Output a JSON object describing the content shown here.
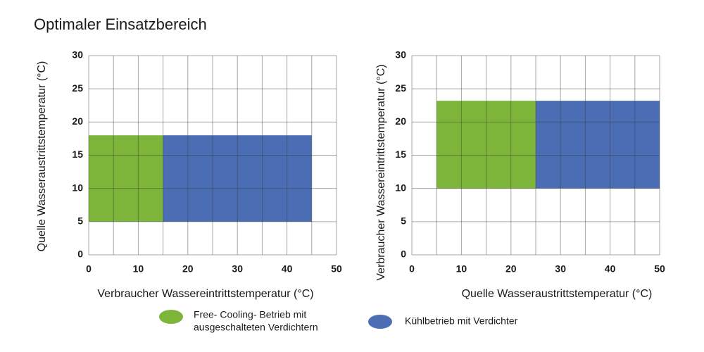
{
  "title": "Optimaler Einsatzbereich",
  "legend": [
    {
      "name": [
        "Free- Cooling- Betrieb mit",
        "ausgeschalteten Verdichtern"
      ],
      "color": "#7cb53a"
    },
    {
      "name": [
        "Kühlbetrieb mit Verdichter"
      ],
      "color": "#4a6db3"
    }
  ],
  "chart_data": [
    {
      "type": "region",
      "xlabel": "Verbraucher Wassereintrittstemperatur (°C)",
      "ylabel": "Quelle Wasseraustrittstemperatur (°C)",
      "regions": [
        {
          "x": [
            0,
            15
          ],
          "y": [
            5,
            18
          ]
        },
        {
          "x": [
            15,
            45
          ],
          "y": [
            5,
            18
          ]
        }
      ],
      "xlim": [
        0,
        50
      ],
      "xticks": [
        0,
        10,
        20,
        30,
        40,
        50
      ],
      "xminorticks": [
        5,
        15,
        25,
        35,
        45
      ],
      "ylim": [
        0,
        30
      ],
      "yticks": [
        0,
        5,
        10,
        15,
        20,
        25,
        30
      ],
      "grid": true
    },
    {
      "type": "region",
      "xlabel": "Quelle Wasseraustrittstemperatur (°C)",
      "ylabel": "Verbraucher Wassereintrittstemperatur (°C)",
      "regions": [
        {
          "x": [
            5,
            25
          ],
          "y": [
            10,
            23.2
          ]
        },
        {
          "x": [
            25,
            50
          ],
          "y": [
            10,
            23.2
          ]
        }
      ],
      "xlim": [
        0,
        50
      ],
      "xticks": [
        0,
        10,
        20,
        30,
        40,
        50
      ],
      "xminorticks": [
        5,
        15,
        25,
        35,
        45
      ],
      "ylim": [
        0,
        30
      ],
      "yticks": [
        0,
        5,
        10,
        15,
        20,
        25,
        30
      ],
      "grid": true
    }
  ]
}
